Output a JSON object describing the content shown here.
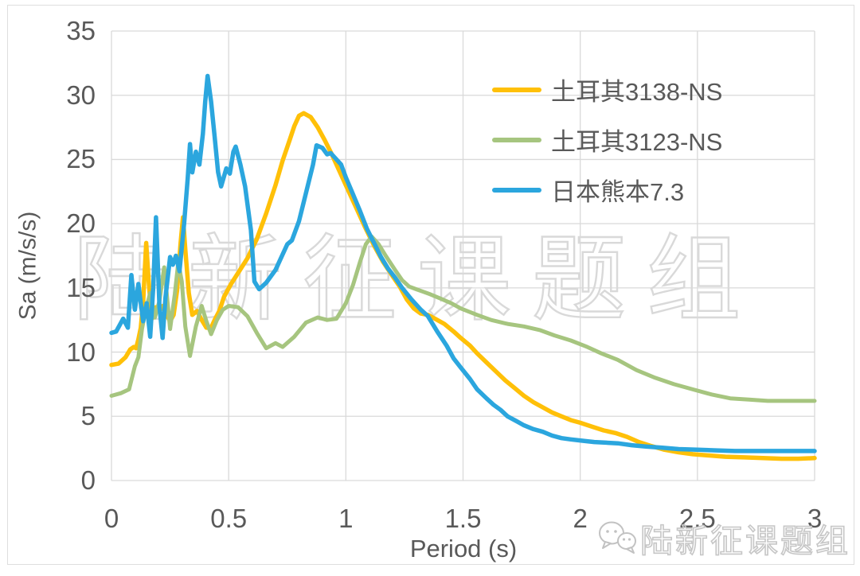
{
  "chart_data": {
    "type": "line",
    "title": "",
    "xlabel": "Period (s)",
    "ylabel": "Sa (m/s/s)",
    "xlim": [
      0,
      3
    ],
    "ylim": [
      0,
      35
    ],
    "x_ticks": [
      "0",
      "0.5",
      "1",
      "1.5",
      "2",
      "2.5",
      "3"
    ],
    "x_tick_values": [
      0,
      0.5,
      1,
      1.5,
      2,
      2.5,
      3
    ],
    "y_ticks": [
      "0",
      "5",
      "10",
      "15",
      "20",
      "25",
      "30",
      "35"
    ],
    "y_tick_values": [
      0,
      5,
      10,
      15,
      20,
      25,
      30,
      35
    ],
    "grid": true,
    "grid_color": "#d9d9d9",
    "axis_text_color": "#595959",
    "legend_position": "inside-top-right",
    "series": [
      {
        "name": "土耳其3138-NS",
        "color": "#FFC008",
        "width": 5.5,
        "points": [
          [
            0,
            9.0
          ],
          [
            0.03,
            9.1
          ],
          [
            0.06,
            9.6
          ],
          [
            0.08,
            10.2
          ],
          [
            0.095,
            10.4
          ],
          [
            0.105,
            10.3
          ],
          [
            0.115,
            11.0
          ],
          [
            0.125,
            11.9
          ],
          [
            0.135,
            13.8
          ],
          [
            0.148,
            18.5
          ],
          [
            0.16,
            15.2
          ],
          [
            0.172,
            12.6
          ],
          [
            0.19,
            13.5
          ],
          [
            0.205,
            13.2
          ],
          [
            0.22,
            13.6
          ],
          [
            0.235,
            12.9
          ],
          [
            0.25,
            12.4
          ],
          [
            0.265,
            12.9
          ],
          [
            0.28,
            14.8
          ],
          [
            0.295,
            18.5
          ],
          [
            0.305,
            20.5
          ],
          [
            0.315,
            18.0
          ],
          [
            0.33,
            14.6
          ],
          [
            0.345,
            12.9
          ],
          [
            0.365,
            13.2
          ],
          [
            0.385,
            12.5
          ],
          [
            0.405,
            11.9
          ],
          [
            0.425,
            11.9
          ],
          [
            0.44,
            12.5
          ],
          [
            0.46,
            13.2
          ],
          [
            0.48,
            14.3
          ],
          [
            0.51,
            15.3
          ],
          [
            0.545,
            16.3
          ],
          [
            0.58,
            17.3
          ],
          [
            0.62,
            18.8
          ],
          [
            0.66,
            20.8
          ],
          [
            0.7,
            23.0
          ],
          [
            0.73,
            24.9
          ],
          [
            0.76,
            26.5
          ],
          [
            0.78,
            27.6
          ],
          [
            0.8,
            28.4
          ],
          [
            0.82,
            28.6
          ],
          [
            0.85,
            28.3
          ],
          [
            0.88,
            27.5
          ],
          [
            0.91,
            26.5
          ],
          [
            0.94,
            25.4
          ],
          [
            0.97,
            24.2
          ],
          [
            1.0,
            23.0
          ],
          [
            1.04,
            21.4
          ],
          [
            1.08,
            19.8
          ],
          [
            1.12,
            18.3
          ],
          [
            1.16,
            17.0
          ],
          [
            1.2,
            15.9
          ],
          [
            1.23,
            15.1
          ],
          [
            1.26,
            14.1
          ],
          [
            1.29,
            13.4
          ],
          [
            1.32,
            13.0
          ],
          [
            1.35,
            12.9
          ],
          [
            1.38,
            12.6
          ],
          [
            1.42,
            12.2
          ],
          [
            1.46,
            11.6
          ],
          [
            1.49,
            11.1
          ],
          [
            1.53,
            10.5
          ],
          [
            1.56,
            9.9
          ],
          [
            1.6,
            9.2
          ],
          [
            1.64,
            8.5
          ],
          [
            1.68,
            7.8
          ],
          [
            1.72,
            7.2
          ],
          [
            1.76,
            6.6
          ],
          [
            1.8,
            6.1
          ],
          [
            1.84,
            5.7
          ],
          [
            1.88,
            5.3
          ],
          [
            1.92,
            5.0
          ],
          [
            1.96,
            4.7
          ],
          [
            2.0,
            4.5
          ],
          [
            2.05,
            4.2
          ],
          [
            2.1,
            3.9
          ],
          [
            2.15,
            3.7
          ],
          [
            2.2,
            3.4
          ],
          [
            2.25,
            3.0
          ],
          [
            2.3,
            2.7
          ],
          [
            2.36,
            2.4
          ],
          [
            2.42,
            2.2
          ],
          [
            2.48,
            2.05
          ],
          [
            2.55,
            1.95
          ],
          [
            2.62,
            1.85
          ],
          [
            2.7,
            1.8
          ],
          [
            2.78,
            1.75
          ],
          [
            2.86,
            1.7
          ],
          [
            2.93,
            1.7
          ],
          [
            3.0,
            1.75
          ]
        ]
      },
      {
        "name": "土耳其3123-NS",
        "color": "#A6C57F",
        "width": 5,
        "points": [
          [
            0,
            6.6
          ],
          [
            0.04,
            6.8
          ],
          [
            0.075,
            7.1
          ],
          [
            0.1,
            8.9
          ],
          [
            0.115,
            9.6
          ],
          [
            0.13,
            11.8
          ],
          [
            0.145,
            13.2
          ],
          [
            0.165,
            14.6
          ],
          [
            0.185,
            12.7
          ],
          [
            0.205,
            14.0
          ],
          [
            0.225,
            16.6
          ],
          [
            0.25,
            11.8
          ],
          [
            0.27,
            14.5
          ],
          [
            0.285,
            17.0
          ],
          [
            0.3,
            15.5
          ],
          [
            0.315,
            12.0
          ],
          [
            0.335,
            9.7
          ],
          [
            0.36,
            12.0
          ],
          [
            0.385,
            13.6
          ],
          [
            0.405,
            12.4
          ],
          [
            0.425,
            11.4
          ],
          [
            0.45,
            12.5
          ],
          [
            0.475,
            13.3
          ],
          [
            0.5,
            13.6
          ],
          [
            0.54,
            13.5
          ],
          [
            0.58,
            12.8
          ],
          [
            0.62,
            11.5
          ],
          [
            0.66,
            10.3
          ],
          [
            0.7,
            10.7
          ],
          [
            0.73,
            10.4
          ],
          [
            0.78,
            11.2
          ],
          [
            0.83,
            12.3
          ],
          [
            0.88,
            12.7
          ],
          [
            0.92,
            12.5
          ],
          [
            0.96,
            12.6
          ],
          [
            1.0,
            13.8
          ],
          [
            1.03,
            15.2
          ],
          [
            1.06,
            17.0
          ],
          [
            1.085,
            18.4
          ],
          [
            1.11,
            19.0
          ],
          [
            1.14,
            18.4
          ],
          [
            1.17,
            17.5
          ],
          [
            1.21,
            16.4
          ],
          [
            1.24,
            15.6
          ],
          [
            1.27,
            15.1
          ],
          [
            1.3,
            14.9
          ],
          [
            1.33,
            14.7
          ],
          [
            1.36,
            14.5
          ],
          [
            1.4,
            14.2
          ],
          [
            1.45,
            13.8
          ],
          [
            1.49,
            13.4
          ],
          [
            1.56,
            12.9
          ],
          [
            1.62,
            12.5
          ],
          [
            1.69,
            12.2
          ],
          [
            1.76,
            12.0
          ],
          [
            1.83,
            11.7
          ],
          [
            1.89,
            11.3
          ],
          [
            1.96,
            10.9
          ],
          [
            2.03,
            10.4
          ],
          [
            2.09,
            9.9
          ],
          [
            2.16,
            9.4
          ],
          [
            2.24,
            8.6
          ],
          [
            2.32,
            8.0
          ],
          [
            2.4,
            7.5
          ],
          [
            2.48,
            7.1
          ],
          [
            2.56,
            6.7
          ],
          [
            2.64,
            6.4
          ],
          [
            2.72,
            6.3
          ],
          [
            2.8,
            6.2
          ],
          [
            2.9,
            6.2
          ],
          [
            3.0,
            6.2
          ]
        ]
      },
      {
        "name": "日本熊本7.3",
        "color": "#2BA6DE",
        "width": 5.5,
        "points": [
          [
            0,
            11.5
          ],
          [
            0.02,
            11.6
          ],
          [
            0.05,
            12.6
          ],
          [
            0.07,
            11.9
          ],
          [
            0.085,
            16.0
          ],
          [
            0.1,
            13.3
          ],
          [
            0.115,
            15.3
          ],
          [
            0.135,
            12.4
          ],
          [
            0.15,
            13.8
          ],
          [
            0.165,
            11.2
          ],
          [
            0.178,
            15.0
          ],
          [
            0.19,
            20.5
          ],
          [
            0.205,
            13.5
          ],
          [
            0.218,
            11.1
          ],
          [
            0.23,
            14.2
          ],
          [
            0.25,
            17.4
          ],
          [
            0.262,
            16.8
          ],
          [
            0.275,
            17.5
          ],
          [
            0.29,
            16.3
          ],
          [
            0.31,
            20.0
          ],
          [
            0.325,
            23.5
          ],
          [
            0.335,
            26.2
          ],
          [
            0.345,
            24.0
          ],
          [
            0.36,
            25.6
          ],
          [
            0.375,
            24.6
          ],
          [
            0.39,
            27.0
          ],
          [
            0.4,
            29.5
          ],
          [
            0.41,
            31.5
          ],
          [
            0.425,
            29.5
          ],
          [
            0.44,
            26.8
          ],
          [
            0.455,
            24.0
          ],
          [
            0.468,
            22.9
          ],
          [
            0.49,
            24.3
          ],
          [
            0.505,
            23.9
          ],
          [
            0.52,
            25.6
          ],
          [
            0.53,
            26.0
          ],
          [
            0.55,
            24.6
          ],
          [
            0.57,
            22.9
          ],
          [
            0.595,
            19.5
          ],
          [
            0.61,
            15.5
          ],
          [
            0.63,
            14.9
          ],
          [
            0.66,
            15.4
          ],
          [
            0.7,
            16.4
          ],
          [
            0.73,
            17.6
          ],
          [
            0.75,
            18.4
          ],
          [
            0.77,
            18.7
          ],
          [
            0.8,
            20.2
          ],
          [
            0.83,
            22.4
          ],
          [
            0.86,
            24.6
          ],
          [
            0.875,
            26.1
          ],
          [
            0.9,
            25.9
          ],
          [
            0.92,
            25.4
          ],
          [
            0.935,
            25.5
          ],
          [
            0.95,
            25.2
          ],
          [
            0.98,
            24.6
          ],
          [
            1.0,
            23.6
          ],
          [
            1.03,
            22.3
          ],
          [
            1.06,
            21.0
          ],
          [
            1.09,
            19.6
          ],
          [
            1.12,
            18.5
          ],
          [
            1.15,
            17.4
          ],
          [
            1.18,
            16.5
          ],
          [
            1.21,
            15.8
          ],
          [
            1.24,
            15.0
          ],
          [
            1.28,
            14.1
          ],
          [
            1.32,
            13.3
          ],
          [
            1.35,
            12.8
          ],
          [
            1.39,
            11.6
          ],
          [
            1.43,
            10.5
          ],
          [
            1.46,
            9.5
          ],
          [
            1.49,
            8.8
          ],
          [
            1.53,
            7.9
          ],
          [
            1.56,
            7.1
          ],
          [
            1.6,
            6.4
          ],
          [
            1.63,
            5.9
          ],
          [
            1.66,
            5.5
          ],
          [
            1.69,
            5.0
          ],
          [
            1.73,
            4.6
          ],
          [
            1.76,
            4.3
          ],
          [
            1.8,
            4.0
          ],
          [
            1.84,
            3.8
          ],
          [
            1.88,
            3.5
          ],
          [
            1.92,
            3.3
          ],
          [
            1.96,
            3.2
          ],
          [
            2.01,
            3.1
          ],
          [
            2.06,
            3.0
          ],
          [
            2.11,
            2.95
          ],
          [
            2.16,
            2.9
          ],
          [
            2.22,
            2.75
          ],
          [
            2.28,
            2.65
          ],
          [
            2.35,
            2.55
          ],
          [
            2.42,
            2.45
          ],
          [
            2.5,
            2.4
          ],
          [
            2.58,
            2.35
          ],
          [
            2.66,
            2.3
          ],
          [
            2.75,
            2.3
          ],
          [
            2.85,
            2.3
          ],
          [
            2.93,
            2.3
          ],
          [
            3.0,
            2.3
          ]
        ]
      }
    ]
  },
  "axes": {
    "x_title": "Period (s)",
    "y_title": "Sa (m/s/s)"
  },
  "watermark": {
    "center_text": "陆新征课题组",
    "footer_text": "陆新征课题组"
  },
  "icons": {
    "footer_logo": "wechat-bubbles-icon"
  },
  "colors": {
    "frame": "#dedede",
    "grid": "#d9d9d9",
    "axis_text": "#595959",
    "watermark_stroke": "#d9d9d9"
  }
}
